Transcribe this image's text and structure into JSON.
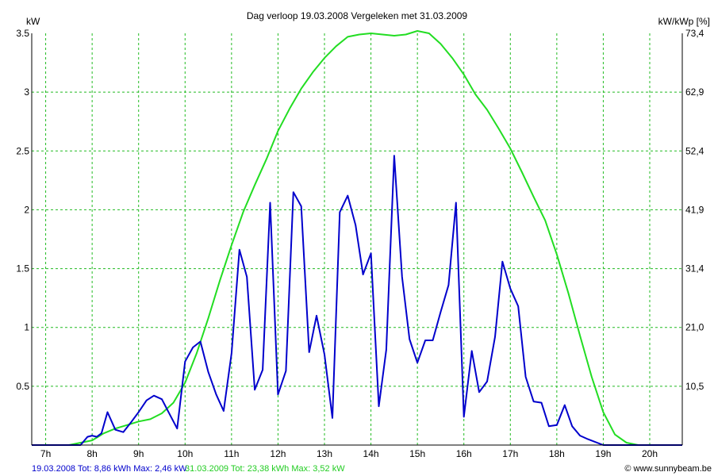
{
  "chart_data": {
    "type": "line",
    "title": "Dag  verloop 19.03.2008   Vergeleken met 31.03.2009",
    "ylabel_left": "kW",
    "ylabel_right": "kW/kWp [%]",
    "ylim": [
      0,
      3.5
    ],
    "y_ticks": [
      0.5,
      1,
      1.5,
      2,
      2.5,
      3,
      3.5
    ],
    "y_tick_labels": [
      "0.5",
      "1",
      "1.5",
      "2",
      "2.5",
      "3",
      "3.5"
    ],
    "y2_ticks": [
      10.5,
      21.0,
      31.4,
      41.9,
      52.4,
      62.9,
      73.4
    ],
    "y2_tick_labels": [
      "10,5",
      "21,0",
      "31,4",
      "41,9",
      "52,4",
      "62,9",
      "73,4"
    ],
    "xlim": [
      6.7,
      20.7
    ],
    "x_ticks": [
      7,
      8,
      9,
      10,
      11,
      12,
      13,
      14,
      15,
      16,
      17,
      18,
      19,
      20
    ],
    "x_tick_labels": [
      "7h",
      "8h",
      "9h",
      "10h",
      "11h",
      "12h",
      "13h",
      "14h",
      "15h",
      "16h",
      "17h",
      "18h",
      "19h",
      "20h"
    ],
    "grid": true,
    "legend_position": "bottom-left",
    "series": [
      {
        "label": "19.03.2008 Tot: 8,86 kWh Max: 2,46 kW",
        "color": "#0000cc",
        "x": [
          6.7,
          7.25,
          7.5,
          7.75,
          7.9,
          8.0,
          8.1,
          8.2,
          8.33,
          8.5,
          8.67,
          8.83,
          9.0,
          9.17,
          9.33,
          9.5,
          9.67,
          9.83,
          10.0,
          10.17,
          10.33,
          10.5,
          10.67,
          10.83,
          11.0,
          11.17,
          11.33,
          11.5,
          11.67,
          11.83,
          12.0,
          12.17,
          12.33,
          12.5,
          12.67,
          12.83,
          13.0,
          13.17,
          13.33,
          13.5,
          13.67,
          13.83,
          14.0,
          14.17,
          14.33,
          14.5,
          14.67,
          14.83,
          15.0,
          15.17,
          15.33,
          15.5,
          15.67,
          15.83,
          16.0,
          16.17,
          16.33,
          16.5,
          16.67,
          16.83,
          17.0,
          17.17,
          17.33,
          17.5,
          17.67,
          17.83,
          18.0,
          18.17,
          18.33,
          18.5,
          18.67,
          19.0,
          19.17,
          20.7
        ],
        "values": [
          0.0,
          0.0,
          0.0,
          0.0,
          0.07,
          0.08,
          0.07,
          0.1,
          0.28,
          0.13,
          0.11,
          0.19,
          0.28,
          0.38,
          0.42,
          0.39,
          0.26,
          0.14,
          0.71,
          0.83,
          0.88,
          0.62,
          0.43,
          0.29,
          0.78,
          1.66,
          1.43,
          0.47,
          0.64,
          2.06,
          0.43,
          0.63,
          2.15,
          2.03,
          0.79,
          1.1,
          0.77,
          0.23,
          1.98,
          2.12,
          1.87,
          1.45,
          1.63,
          0.33,
          0.81,
          2.46,
          1.43,
          0.9,
          0.7,
          0.89,
          0.89,
          1.13,
          1.36,
          2.06,
          0.24,
          0.8,
          0.45,
          0.54,
          0.92,
          1.56,
          1.33,
          1.18,
          0.58,
          0.37,
          0.36,
          0.16,
          0.17,
          0.34,
          0.16,
          0.08,
          0.05,
          0.0,
          0.0,
          0.0
        ]
      },
      {
        "label": "31.03.2009 Tot: 23,38 kWh Max: 3,52 kW",
        "color": "#22dd22",
        "x": [
          6.7,
          7.25,
          7.5,
          8.0,
          8.25,
          8.5,
          8.75,
          9.0,
          9.25,
          9.5,
          9.75,
          10.0,
          10.25,
          10.5,
          10.75,
          11.0,
          11.25,
          11.5,
          11.75,
          12.0,
          12.25,
          12.5,
          12.75,
          13.0,
          13.25,
          13.5,
          13.75,
          14.0,
          14.25,
          14.5,
          14.75,
          15.0,
          15.25,
          15.5,
          15.75,
          16.0,
          16.25,
          16.5,
          16.75,
          17.0,
          17.25,
          17.5,
          17.75,
          18.0,
          18.25,
          18.5,
          18.75,
          19.0,
          19.25,
          19.5,
          19.75,
          20.0,
          20.25,
          20.7
        ],
        "values": [
          0.0,
          0.0,
          0.0,
          0.04,
          0.1,
          0.14,
          0.17,
          0.2,
          0.22,
          0.27,
          0.36,
          0.53,
          0.78,
          1.08,
          1.4,
          1.7,
          1.98,
          2.21,
          2.43,
          2.67,
          2.86,
          3.03,
          3.17,
          3.29,
          3.39,
          3.47,
          3.49,
          3.5,
          3.49,
          3.48,
          3.49,
          3.52,
          3.5,
          3.41,
          3.29,
          3.15,
          2.98,
          2.85,
          2.69,
          2.52,
          2.32,
          2.11,
          1.91,
          1.62,
          1.29,
          0.93,
          0.58,
          0.28,
          0.09,
          0.02,
          0.0,
          0.0,
          0.0,
          0.0
        ]
      }
    ]
  },
  "footer": {
    "series1_label": "19.03.2008 Tot: 8,86 kWh Max: 2,46 kW",
    "series2_label": "31.03.2009 Tot: 23,38 kWh Max: 3,52 kW",
    "copyright": "© www.sunnybeam.be"
  },
  "colors": {
    "grid": "#22bb22",
    "axis": "#000000",
    "series1": "#0000cc",
    "series2": "#22dd22"
  }
}
